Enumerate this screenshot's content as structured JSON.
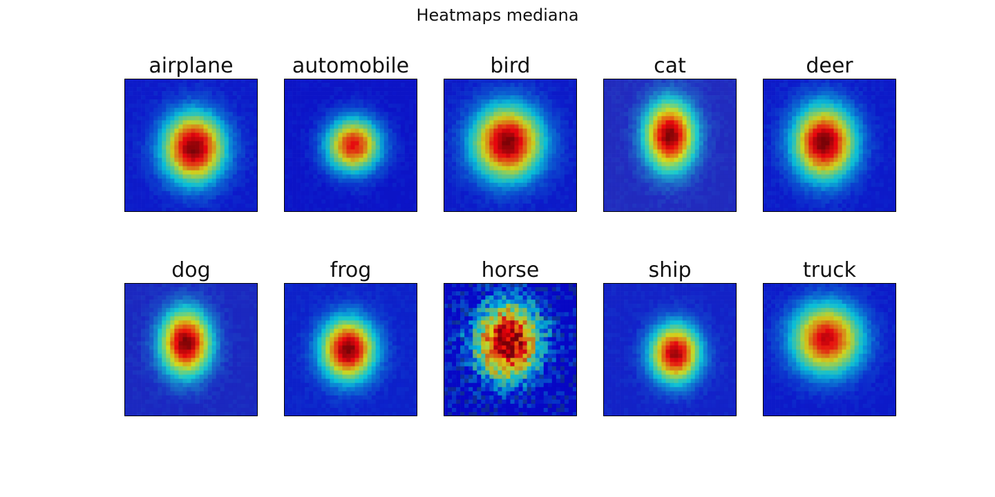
{
  "chart_data": {
    "type": "heatmap",
    "title": "Heatmaps mediana",
    "layout": {
      "rows": 2,
      "cols": 5
    },
    "colormap": "jet",
    "resolution": 32,
    "panels": [
      {
        "title": "airplane",
        "base": "#1d3a8a",
        "hotspot": {
          "cx": 0.52,
          "cy": 0.52,
          "sx": 0.16,
          "sy": 0.18,
          "peak": 1.0
        },
        "noisy": false
      },
      {
        "title": "automobile",
        "base": "#1b2c86",
        "hotspot": {
          "cx": 0.52,
          "cy": 0.5,
          "sx": 0.14,
          "sy": 0.14,
          "peak": 0.85
        },
        "noisy": false
      },
      {
        "title": "bird",
        "base": "#1c3a88",
        "hotspot": {
          "cx": 0.48,
          "cy": 0.48,
          "sx": 0.18,
          "sy": 0.19,
          "peak": 1.0
        },
        "noisy": false
      },
      {
        "title": "cat",
        "base": "#4a5f73",
        "hotspot": {
          "cx": 0.5,
          "cy": 0.43,
          "sx": 0.13,
          "sy": 0.18,
          "peak": 1.0
        },
        "noisy": false
      },
      {
        "title": "deer",
        "base": "#1c3a8a",
        "hotspot": {
          "cx": 0.46,
          "cy": 0.48,
          "sx": 0.16,
          "sy": 0.19,
          "peak": 1.0
        },
        "noisy": false
      },
      {
        "title": "dog",
        "base": "#3c5876",
        "hotspot": {
          "cx": 0.46,
          "cy": 0.45,
          "sx": 0.13,
          "sy": 0.17,
          "peak": 1.0
        },
        "noisy": false
      },
      {
        "title": "frog",
        "base": "#1e4a8c",
        "hotspot": {
          "cx": 0.48,
          "cy": 0.5,
          "sx": 0.14,
          "sy": 0.16,
          "peak": 1.0
        },
        "noisy": false
      },
      {
        "title": "horse",
        "base": "#101080",
        "hotspot": {
          "cx": 0.48,
          "cy": 0.44,
          "sx": 0.17,
          "sy": 0.2,
          "peak": 1.0
        },
        "noisy": true
      },
      {
        "title": "ship",
        "base": "#2a4c86",
        "hotspot": {
          "cx": 0.54,
          "cy": 0.53,
          "sx": 0.13,
          "sy": 0.15,
          "peak": 0.95
        },
        "noisy": false
      },
      {
        "title": "truck",
        "base": "#1d3a8a",
        "hotspot": {
          "cx": 0.48,
          "cy": 0.42,
          "sx": 0.18,
          "sy": 0.18,
          "peak": 0.9
        },
        "noisy": false
      }
    ]
  }
}
